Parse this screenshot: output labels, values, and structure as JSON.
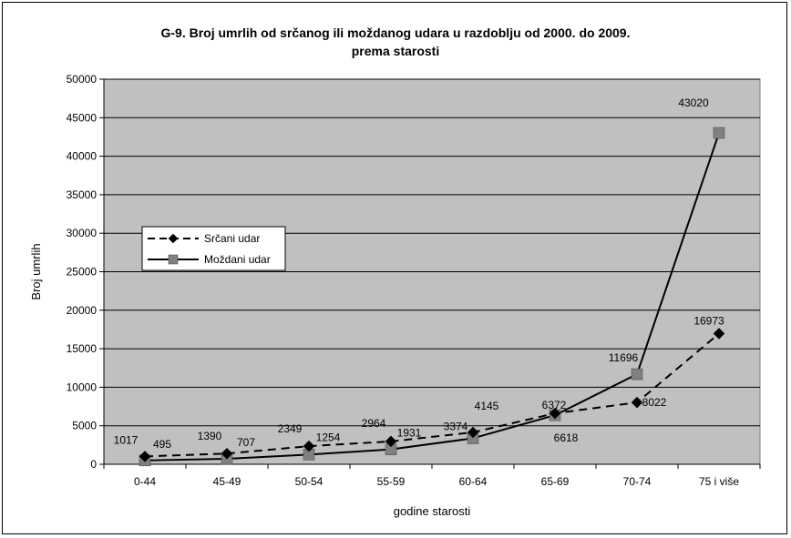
{
  "chart_data": {
    "type": "line",
    "title_line1": "G-9. Broj umrlih od srčanog ili moždanog udara u razdoblju od 2000. do 2009.",
    "title_line2": "prema starosti",
    "xlabel": "godine starosti",
    "ylabel": "Broj umrlih",
    "categories": [
      "0-44",
      "45-49",
      "50-54",
      "55-59",
      "60-64",
      "65-69",
      "70-74",
      "75 i više"
    ],
    "ylim": [
      0,
      50000
    ],
    "yticks": [
      0,
      5000,
      10000,
      15000,
      20000,
      25000,
      30000,
      35000,
      40000,
      45000,
      50000
    ],
    "grid": true,
    "legend_position": "left",
    "plot_background": "#c0c0c0",
    "series": [
      {
        "name": "Srčani udar",
        "values": [
          1017,
          1390,
          2349,
          2964,
          4145,
          6618,
          8022,
          16973
        ],
        "color": "#000000",
        "line_style": "dashed",
        "marker": "diamond"
      },
      {
        "name": "Moždani udar",
        "values": [
          495,
          707,
          1254,
          1931,
          3374,
          6372,
          11696,
          43020
        ],
        "color": "#000000",
        "marker_color": "#808080",
        "line_style": "solid",
        "marker": "square"
      }
    ]
  }
}
